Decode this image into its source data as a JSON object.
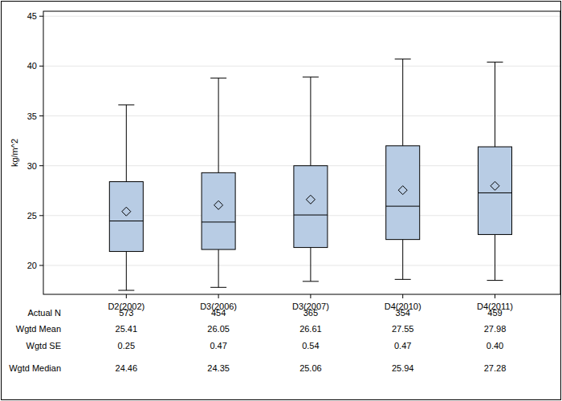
{
  "chart_data": {
    "type": "box",
    "ylabel": "kg/m^2",
    "categories": [
      "D2(2002)",
      "D3(2006)",
      "D3(2007)",
      "D4(2010)",
      "D4(2011)"
    ],
    "boxes": [
      {
        "low": 17.5,
        "q1": 21.4,
        "median": 24.46,
        "q3": 28.4,
        "high": 36.1,
        "mean": 25.41
      },
      {
        "low": 17.8,
        "q1": 21.6,
        "median": 24.35,
        "q3": 29.3,
        "high": 38.8,
        "mean": 26.05
      },
      {
        "low": 18.4,
        "q1": 21.8,
        "median": 25.06,
        "q3": 30.0,
        "high": 38.9,
        "mean": 26.61
      },
      {
        "low": 18.6,
        "q1": 22.6,
        "median": 25.94,
        "q3": 32.0,
        "high": 40.7,
        "mean": 27.55
      },
      {
        "low": 18.5,
        "q1": 23.1,
        "median": 27.28,
        "q3": 31.9,
        "high": 40.4,
        "mean": 27.98
      }
    ],
    "color": "#b8cce4",
    "ylim": [
      17.1,
      45.5
    ],
    "yticks": [
      20,
      25,
      30,
      35,
      40,
      45
    ],
    "grid": true,
    "table": {
      "rows": [
        {
          "label": "Actual N",
          "cells": [
            "573",
            "454",
            "365",
            "354",
            "459"
          ]
        },
        {
          "label": "Wgtd Mean",
          "cells": [
            "25.41",
            "26.05",
            "26.61",
            "27.55",
            "27.98"
          ]
        },
        {
          "label": "Wgtd SE",
          "cells": [
            "0.25",
            "0.47",
            "0.54",
            "0.47",
            "0.40"
          ]
        },
        {
          "label": "Wgtd Median",
          "cells": [
            "24.46",
            "24.35",
            "25.06",
            "25.94",
            "27.28"
          ]
        }
      ]
    }
  }
}
